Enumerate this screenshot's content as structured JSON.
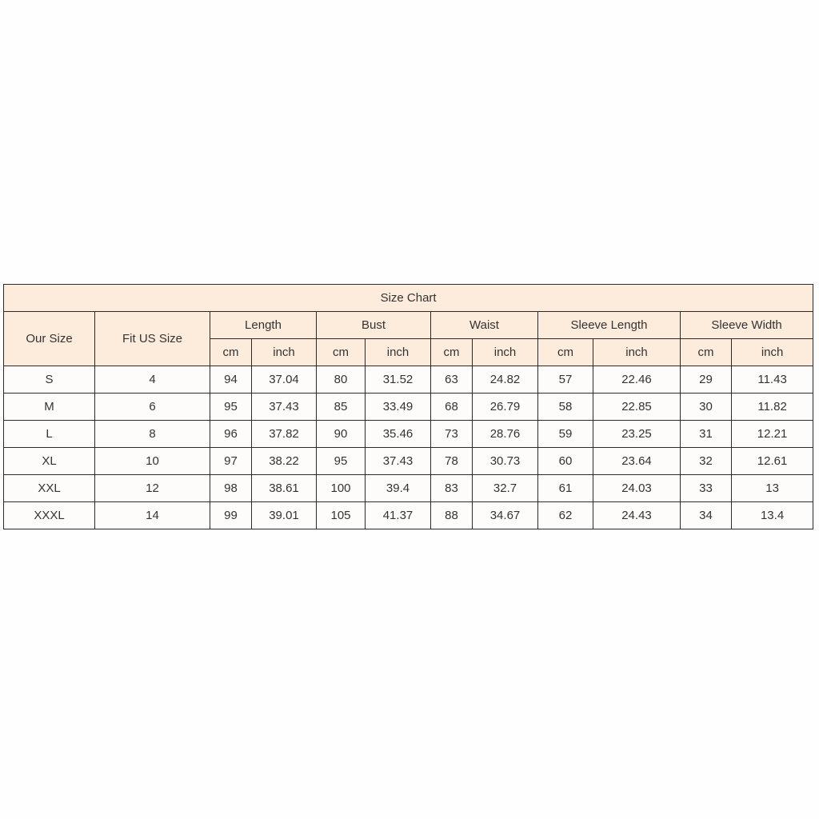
{
  "table": {
    "title": "Size Chart",
    "headers": {
      "our_size": "Our Size",
      "fit_us_size": "Fit US Size",
      "groups": [
        "Length",
        "Bust",
        "Waist",
        "Sleeve Length",
        "Sleeve Width"
      ],
      "units": [
        "cm",
        "inch"
      ]
    },
    "colors": {
      "header_bg": "#fdebdc",
      "border": "#2a2a2a"
    },
    "rows": [
      [
        "S",
        "4",
        "94",
        "37.04",
        "80",
        "31.52",
        "63",
        "24.82",
        "57",
        "22.46",
        "29",
        "11.43"
      ],
      [
        "M",
        "6",
        "95",
        "37.43",
        "85",
        "33.49",
        "68",
        "26.79",
        "58",
        "22.85",
        "30",
        "11.82"
      ],
      [
        "L",
        "8",
        "96",
        "37.82",
        "90",
        "35.46",
        "73",
        "28.76",
        "59",
        "23.25",
        "31",
        "12.21"
      ],
      [
        "XL",
        "10",
        "97",
        "38.22",
        "95",
        "37.43",
        "78",
        "30.73",
        "60",
        "23.64",
        "32",
        "12.61"
      ],
      [
        "XXL",
        "12",
        "98",
        "38.61",
        "100",
        "39.4",
        "83",
        "32.7",
        "61",
        "24.03",
        "33",
        "13"
      ],
      [
        "XXXL",
        "14",
        "99",
        "39.01",
        "105",
        "41.37",
        "88",
        "34.67",
        "62",
        "24.43",
        "34",
        "13.4"
      ]
    ]
  }
}
